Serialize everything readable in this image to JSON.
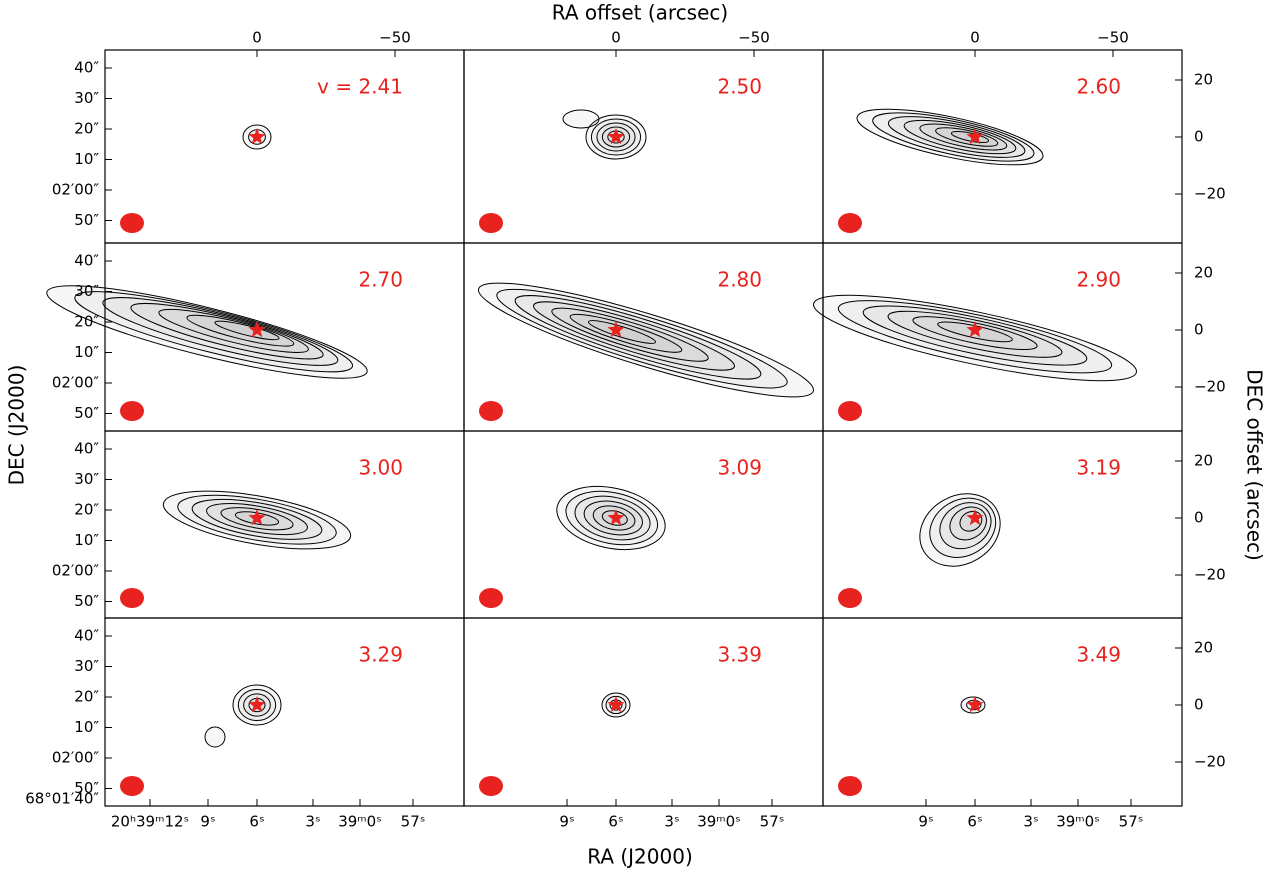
{
  "axes": {
    "top_label": "RA offset (arcsec)",
    "bottom_label": "RA (J2000)",
    "left_label": "DEC (J2000)",
    "right_label": "DEC offset (arcsec)",
    "top_ticks": [
      "0",
      "−50"
    ],
    "right_ticks": [
      "20",
      "0",
      "−20"
    ],
    "left_ticks": [
      "40″",
      "30″",
      "20″",
      "10″",
      "02′00″",
      "50″"
    ],
    "left_extra_tick": "68°01′40″",
    "bottom_ticks_first": [
      "20ʰ39ᵐ12ˢ",
      "9ˢ",
      "6ˢ",
      "3ˢ",
      "39ᵐ0ˢ",
      "57ˢ"
    ],
    "bottom_ticks": [
      "9ˢ",
      "6ˢ",
      "3ˢ",
      "39ᵐ0ˢ",
      "57ˢ"
    ]
  },
  "panels": [
    {
      "label": "v = 2.41"
    },
    {
      "label": "2.50"
    },
    {
      "label": "2.60"
    },
    {
      "label": "2.70"
    },
    {
      "label": "2.80"
    },
    {
      "label": "2.90"
    },
    {
      "label": "3.00"
    },
    {
      "label": "3.09"
    },
    {
      "label": "3.19"
    },
    {
      "label": "3.29"
    },
    {
      "label": "3.39"
    },
    {
      "label": "3.49"
    }
  ]
}
